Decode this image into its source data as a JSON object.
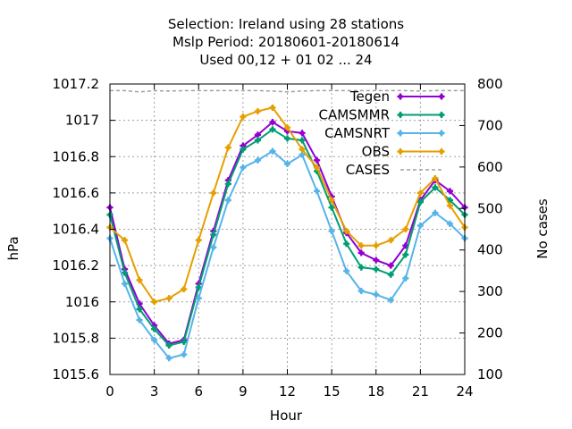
{
  "chart_data": {
    "type": "line",
    "title_lines": [
      "Selection: Ireland using    28 stations",
      "Mslp   Period: 20180601-20180614",
      "Used  00,12  + 01 02 ... 24"
    ],
    "xlabel": "Hour",
    "ylabel": "hPa",
    "y2label": "No cases",
    "xlim": [
      0,
      24
    ],
    "ylim": [
      1015.6,
      1017.2
    ],
    "y2lim": [
      100,
      800
    ],
    "xticks": [
      "0",
      "3",
      "6",
      "9",
      "12",
      "15",
      "18",
      "21",
      "24"
    ],
    "xtick_values": [
      0,
      3,
      6,
      9,
      12,
      15,
      18,
      21,
      24
    ],
    "yticks": [
      "1015.6",
      "1015.8",
      "1016",
      "1016.2",
      "1016.4",
      "1016.6",
      "1016.8",
      "1017",
      "1017.2"
    ],
    "ytick_values": [
      1015.6,
      1015.8,
      1016.0,
      1016.2,
      1016.4,
      1016.6,
      1016.8,
      1017.0,
      1017.2
    ],
    "y2ticks": [
      "100",
      "200",
      "300",
      "400",
      "500",
      "600",
      "700",
      "800"
    ],
    "y2tick_values": [
      100,
      200,
      300,
      400,
      500,
      600,
      700,
      800
    ],
    "grid": true,
    "legend_position": "top-right",
    "x": [
      0,
      1,
      2,
      3,
      4,
      5,
      6,
      7,
      8,
      9,
      10,
      11,
      12,
      13,
      14,
      15,
      16,
      17,
      18,
      19,
      20,
      21,
      22,
      23,
      24
    ],
    "series": [
      {
        "name": "Tegen",
        "color": "#9400d3",
        "marker": "cross",
        "values": [
          1016.52,
          1016.18,
          1015.99,
          1015.87,
          1015.77,
          1015.79,
          1016.1,
          1016.39,
          1016.67,
          1016.86,
          1016.92,
          1016.99,
          1016.94,
          1016.93,
          1016.78,
          1016.58,
          1016.38,
          1016.27,
          1016.23,
          1016.2,
          1016.31,
          1016.56,
          1016.67,
          1016.61,
          1016.52
        ]
      },
      {
        "name": "CAMSMMR",
        "color": "#009e73",
        "marker": "cross",
        "values": [
          1016.48,
          1016.16,
          1015.96,
          1015.85,
          1015.76,
          1015.78,
          1016.08,
          1016.37,
          1016.65,
          1016.84,
          1016.89,
          1016.95,
          1016.9,
          1016.89,
          1016.72,
          1016.52,
          1016.32,
          1016.19,
          1016.18,
          1016.15,
          1016.26,
          1016.55,
          1016.63,
          1016.56,
          1016.48
        ]
      },
      {
        "name": "CAMSNRT",
        "color": "#56b4e9",
        "marker": "cross",
        "values": [
          1016.35,
          1016.1,
          1015.9,
          1015.79,
          1015.69,
          1015.71,
          1016.02,
          1016.3,
          1016.56,
          1016.74,
          1016.78,
          1016.83,
          1016.76,
          1016.81,
          1016.61,
          1016.39,
          1016.17,
          1016.06,
          1016.04,
          1016.01,
          1016.13,
          1016.42,
          1016.49,
          1016.43,
          1016.35
        ]
      },
      {
        "name": "OBS",
        "color": "#e69f00",
        "marker": "cross",
        "values": [
          1016.41,
          1016.34,
          1016.12,
          1016.0,
          1016.02,
          1016.07,
          1016.34,
          1016.6,
          1016.85,
          1017.02,
          1017.05,
          1017.07,
          1016.96,
          1016.84,
          1016.74,
          1016.56,
          1016.39,
          1016.31,
          1016.31,
          1016.34,
          1016.4,
          1016.6,
          1016.68,
          1016.53,
          1016.41
        ]
      }
    ],
    "cases_series": {
      "name": "CASES",
      "color": "#a0a0a0",
      "axis": "y2",
      "style": "dashed",
      "values": [
        784,
        784,
        781,
        784,
        783,
        784,
        784,
        784,
        784,
        784,
        784,
        783,
        781,
        783,
        784,
        784,
        784,
        784,
        784,
        784,
        784,
        783,
        784,
        784,
        784
      ]
    }
  }
}
